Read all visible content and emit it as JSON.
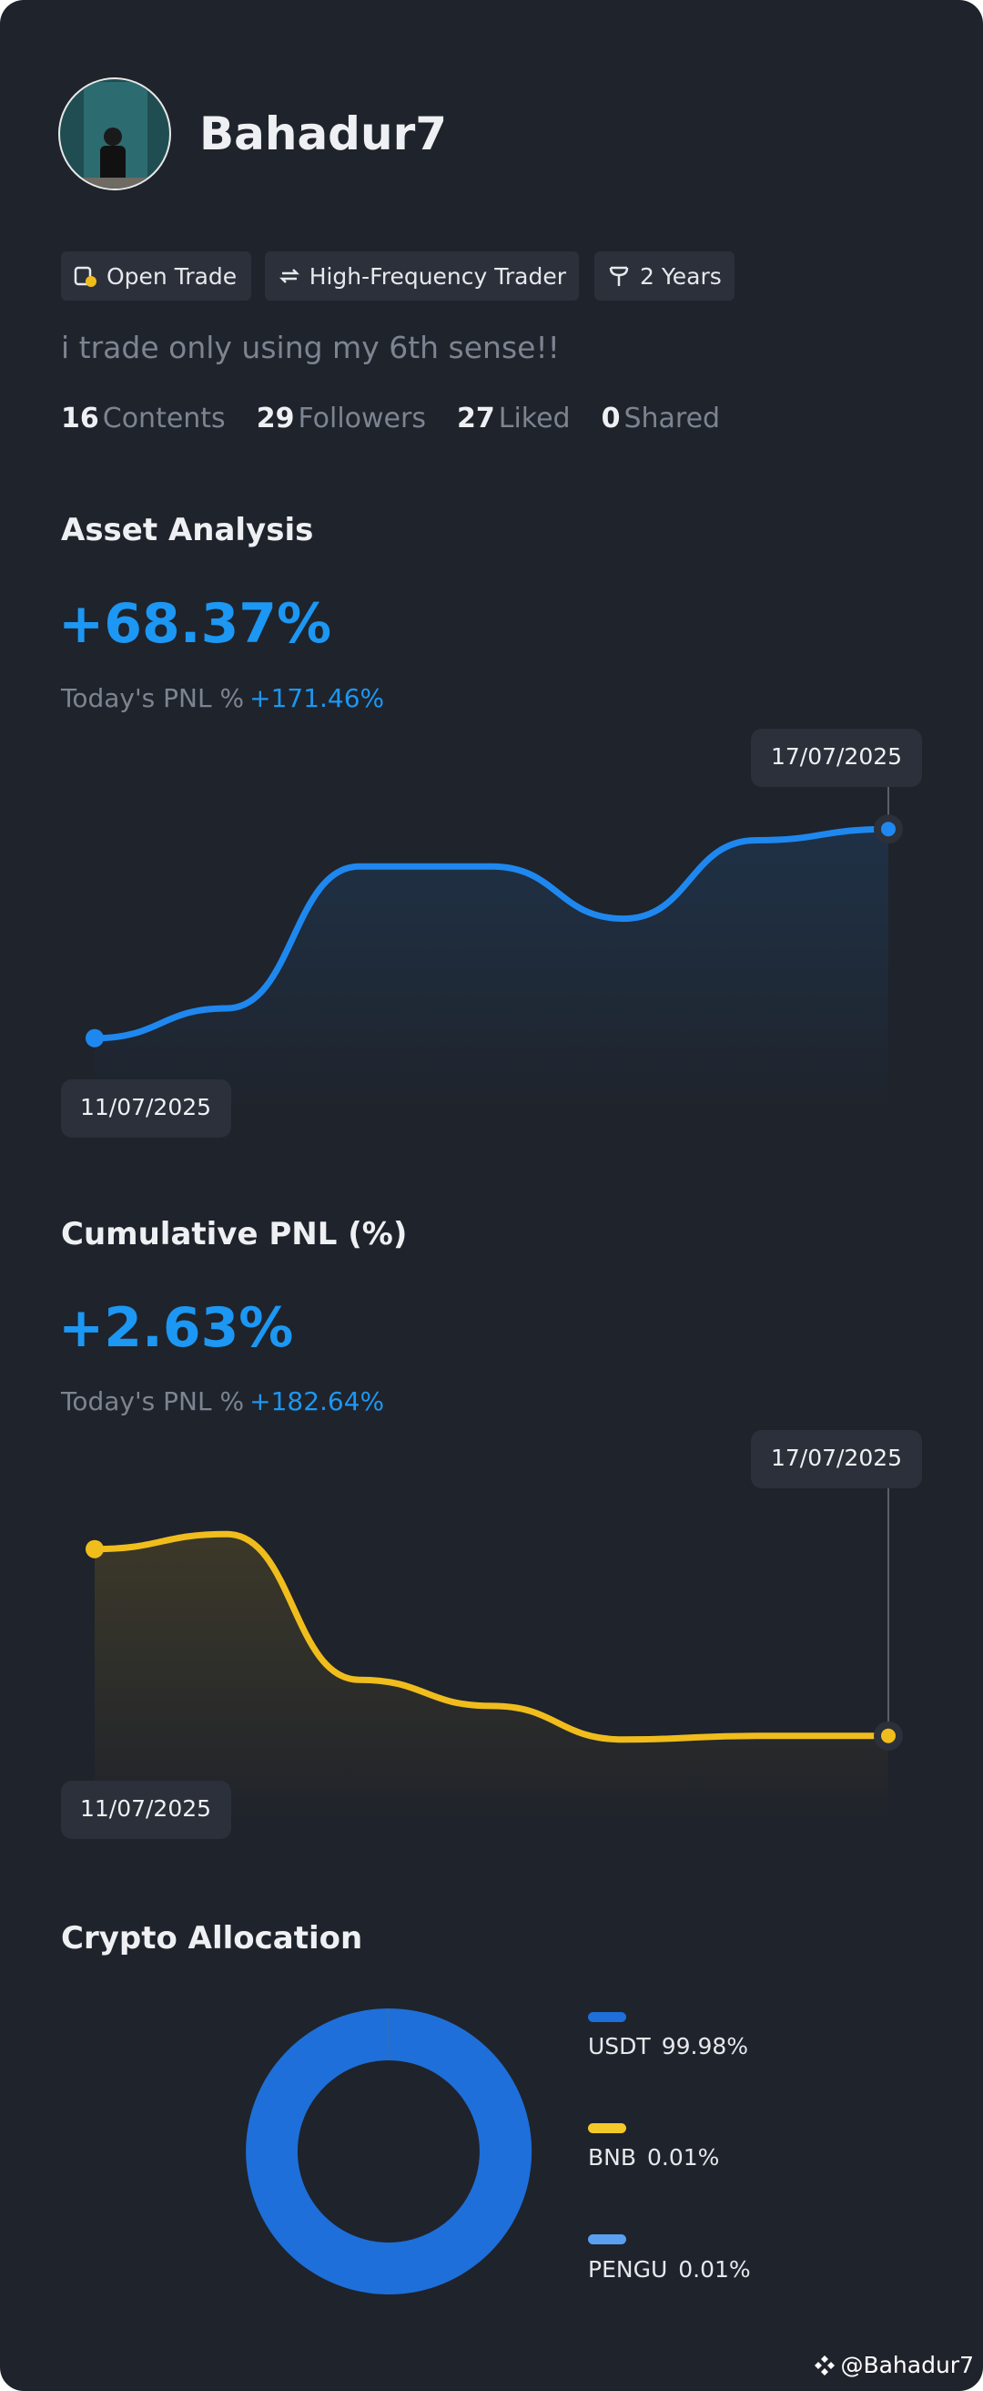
{
  "profile": {
    "name": "Bahadur7",
    "tags": [
      "Open Trade",
      "High-Frequency Trader",
      "2 Years"
    ],
    "bio": "i trade only using my 6th sense!!",
    "stats": [
      {
        "count": "16",
        "label": "Contents"
      },
      {
        "count": "29",
        "label": "Followers"
      },
      {
        "count": "27",
        "label": "Liked"
      },
      {
        "count": "0",
        "label": "Shared"
      }
    ]
  },
  "chart_data": [
    {
      "type": "line",
      "title": "Asset Analysis",
      "headline": "+68.37%",
      "subtitle": "Today's PNL %",
      "subtitle_value": "+171.46%",
      "categories": [
        "11/07/2025",
        null,
        null,
        null,
        null,
        null,
        "17/07/2025"
      ],
      "values": [
        22,
        30,
        68,
        68,
        54,
        75,
        78
      ],
      "color": "#1e88f0",
      "ylim": [
        0,
        100
      ]
    },
    {
      "type": "line",
      "title": "Cumulative PNL (%)",
      "headline": "+2.63%",
      "subtitle": "Today's PNL %",
      "subtitle_value": "+182.64%",
      "categories": [
        "11/07/2025",
        null,
        null,
        null,
        null,
        null,
        "17/07/2025"
      ],
      "values": [
        73,
        77,
        38,
        31,
        22,
        23,
        23
      ],
      "color": "#f0bd1c",
      "ylim": [
        0,
        100
      ]
    },
    {
      "type": "donut",
      "title": "Crypto Allocation",
      "categories": [
        "USDT",
        "BNB",
        "PENGU"
      ],
      "values": [
        99.98,
        0.01,
        0.01
      ],
      "value_labels": [
        "99.98%",
        "0.01%",
        "0.01%"
      ],
      "colors": [
        "#1e6fd9",
        "#f5c92a",
        "#5aa0f0"
      ]
    }
  ],
  "watermark": "@Bahadur7"
}
